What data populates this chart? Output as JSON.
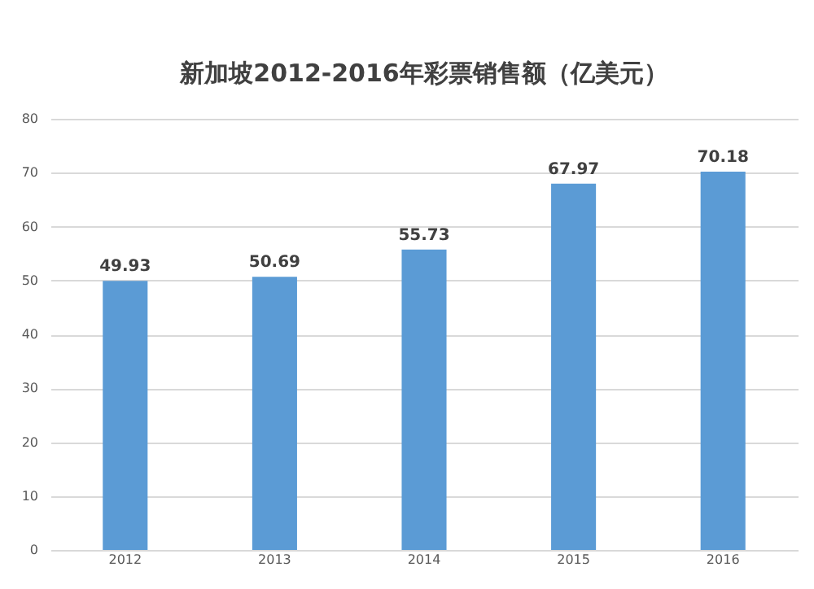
{
  "chart_data": {
    "type": "bar",
    "title": "新加坡2012-2016年彩票销售额（亿美元）",
    "categories": [
      "2012",
      "2013",
      "2014",
      "2015",
      "2016"
    ],
    "values": [
      49.93,
      50.69,
      55.73,
      67.97,
      70.18
    ],
    "color": "#5b9bd5",
    "ylim": [
      0,
      80
    ],
    "yticks": [
      0,
      10,
      20,
      30,
      40,
      50,
      60,
      70,
      80
    ],
    "grid": "y",
    "data_labels": true
  }
}
